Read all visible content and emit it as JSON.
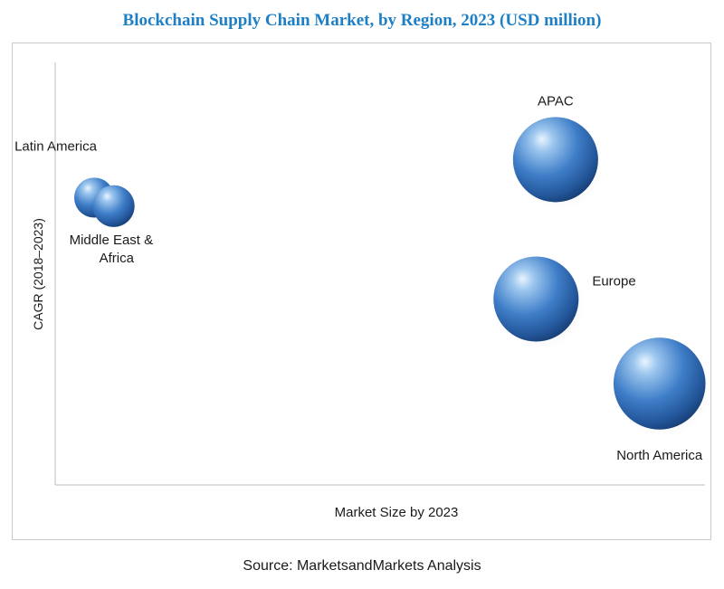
{
  "title": "Blockchain Supply Chain Market, by Region, 2023 (USD million)",
  "source": "Source: MarketsandMarkets Analysis",
  "chart_data": {
    "type": "bubble",
    "title": "Blockchain Supply Chain Market, by Region, 2023 (USD million)",
    "xlabel": "Market Size by 2023",
    "ylabel": "CAGR (2018–2023)",
    "axis_ticks": "none",
    "grid": false,
    "legend": "none",
    "bubble_color": "#3e7dc8",
    "series": [
      {
        "name": "Latin America",
        "x": 0.06,
        "y": 0.68,
        "size": 0.46
      },
      {
        "name": "Middle East & Africa",
        "x": 0.09,
        "y": 0.66,
        "size": 0.48
      },
      {
        "name": "APAC",
        "x": 0.77,
        "y": 0.77,
        "size": 1.0
      },
      {
        "name": "Europe",
        "x": 0.74,
        "y": 0.44,
        "size": 1.0
      },
      {
        "name": "North America",
        "x": 0.93,
        "y": 0.24,
        "size": 1.08
      }
    ]
  }
}
